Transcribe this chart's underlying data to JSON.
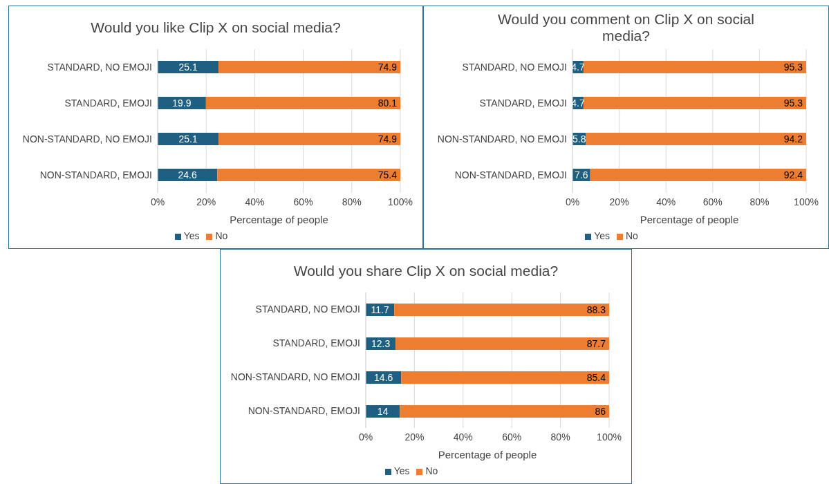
{
  "chart_data": [
    {
      "type": "bar",
      "orientation": "horizontal",
      "stacked": true,
      "title": "Would you like Clip X on social media?",
      "xlabel": "Percentage of people",
      "categories": [
        "STANDARD, NO EMOJI",
        "STANDARD, EMOJI",
        "NON-STANDARD, NO EMOJI",
        "NON-STANDARD, EMOJI"
      ],
      "series": [
        {
          "name": "Yes",
          "color": "#1f5f82",
          "values": [
            25.1,
            19.9,
            25.1,
            24.6
          ]
        },
        {
          "name": "No",
          "color": "#ed7d31",
          "values": [
            74.9,
            80.1,
            74.9,
            75.4
          ]
        }
      ],
      "xlim": [
        0,
        100
      ],
      "xticks": [
        {
          "value": 0,
          "label": "0%"
        },
        {
          "value": 20,
          "label": "20%"
        },
        {
          "value": 40,
          "label": "40%"
        },
        {
          "value": 60,
          "label": "60%"
        },
        {
          "value": 80,
          "label": "80%"
        },
        {
          "value": 100,
          "label": "100%"
        }
      ],
      "grid": "x",
      "legend": "bottom",
      "data_labels": true
    },
    {
      "type": "bar",
      "orientation": "horizontal",
      "stacked": true,
      "title": "Would you comment on Clip X on social media?",
      "xlabel": "Percentage of people",
      "categories": [
        "STANDARD, NO EMOJI",
        "STANDARD, EMOJI",
        "NON-STANDARD, NO EMOJI",
        "NON-STANDARD, EMOJI"
      ],
      "series": [
        {
          "name": "Yes",
          "color": "#1f5f82",
          "values": [
            4.7,
            4.7,
            5.8,
            7.6
          ]
        },
        {
          "name": "No",
          "color": "#ed7d31",
          "values": [
            95.3,
            95.3,
            94.2,
            92.4
          ]
        }
      ],
      "xlim": [
        0,
        100
      ],
      "xticks": [
        {
          "value": 0,
          "label": "0%"
        },
        {
          "value": 20,
          "label": "20%"
        },
        {
          "value": 40,
          "label": "40%"
        },
        {
          "value": 60,
          "label": "60%"
        },
        {
          "value": 80,
          "label": "80%"
        },
        {
          "value": 100,
          "label": "100%"
        }
      ],
      "grid": "x",
      "legend": "bottom",
      "data_labels": true
    },
    {
      "type": "bar",
      "orientation": "horizontal",
      "stacked": true,
      "title": "Would you share Clip X on social media?",
      "xlabel": "Percentage of people",
      "categories": [
        "STANDARD, NO EMOJI",
        "STANDARD, EMOJI",
        "NON-STANDARD, NO EMOJI",
        "NON-STANDARD, EMOJI"
      ],
      "series": [
        {
          "name": "Yes",
          "color": "#1f5f82",
          "values": [
            11.7,
            12.3,
            14.6,
            14
          ]
        },
        {
          "name": "No",
          "color": "#ed7d31",
          "values": [
            88.3,
            87.7,
            85.4,
            86
          ]
        }
      ],
      "xlim": [
        0,
        100
      ],
      "xticks": [
        {
          "value": 0,
          "label": "0%"
        },
        {
          "value": 20,
          "label": "20%"
        },
        {
          "value": 40,
          "label": "40%"
        },
        {
          "value": 60,
          "label": "60%"
        },
        {
          "value": 80,
          "label": "80%"
        },
        {
          "value": 100,
          "label": "100%"
        }
      ],
      "grid": "x",
      "legend": "bottom",
      "data_labels": true
    }
  ]
}
